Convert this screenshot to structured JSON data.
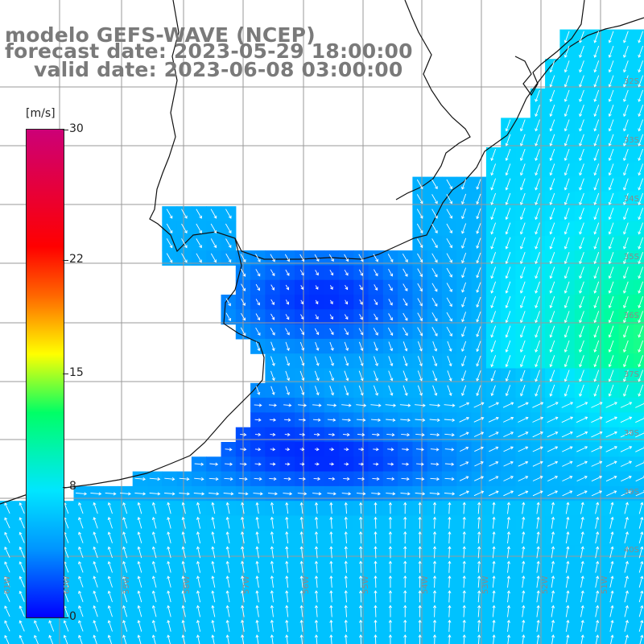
{
  "title": {
    "model": "modelo GEFS-WAVE (NCEP)",
    "forecast": "forecast date: 2023-05-29 18:00:00",
    "valid": "valid date: 2023-06-08 03:00:00"
  },
  "colorbar": {
    "unit": "[m/s]",
    "min": 0,
    "max": 30,
    "ticks": [
      {
        "value": 30,
        "label": "30"
      },
      {
        "value": 22,
        "label": "22"
      },
      {
        "value": 15,
        "label": "15"
      },
      {
        "value": 8,
        "label": "8"
      },
      {
        "value": 0,
        "label": "0"
      }
    ],
    "colors": [
      "#0000ff",
      "#0095ff",
      "#00e6ff",
      "#00ff66",
      "#ffff00",
      "#ff6600",
      "#ff0000",
      "#cc0077"
    ]
  },
  "map": {
    "land_color": "#ffffff",
    "grid_color": "#9a9a9a",
    "coast_color": "#111111",
    "arrow_color": "#ffffff",
    "lat_labels": [
      "32S",
      "33S",
      "34S",
      "35S",
      "36S",
      "37S",
      "38S",
      "39S",
      "40S"
    ],
    "lon_labels": [
      "61W",
      "60W",
      "59W",
      "58W",
      "57W",
      "56W",
      "55W",
      "54W",
      "53W",
      "52W",
      "51W"
    ]
  }
}
